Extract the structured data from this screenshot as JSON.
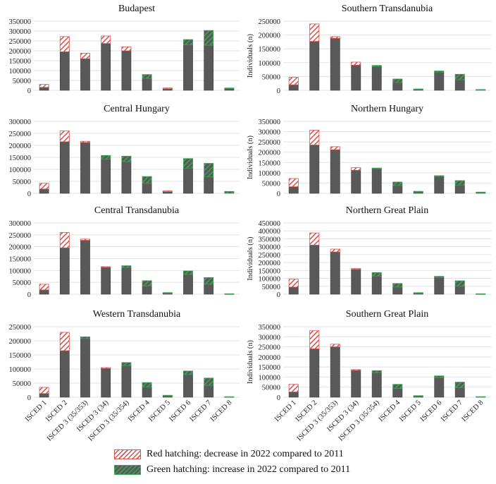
{
  "chart_data": {
    "type": "bar",
    "categories": [
      "ISCED 1",
      "ISCED 2",
      "ISCED 3 (35/353)",
      "ISCED 3 (34)",
      "ISCED 3 (35/354)",
      "ISCED 4",
      "ISCED 5",
      "ISCED 6",
      "ISCED 7",
      "ISCED 8"
    ],
    "ylabel": "Individuals (n)",
    "grid": true,
    "colors": {
      "base": "#595959",
      "decrease": "#d9534f",
      "increase": "#3aa655"
    },
    "legend": {
      "placement": "bottom",
      "red": "Red hatching: decrease in 2022 compared to 2011",
      "green": "Green hatching: increase in 2022 compared to 2011"
    },
    "panels": [
      {
        "title": "Budapest",
        "ylim": [
          0,
          350000
        ],
        "values_2011": [
          30000,
          272000,
          188000,
          275000,
          220000,
          60000,
          12000,
          230000,
          228000,
          8000
        ],
        "values_2022": [
          15000,
          195000,
          160000,
          237000,
          200000,
          80000,
          8000,
          257000,
          303000,
          12000
        ]
      },
      {
        "title": "Southern Transdanubia",
        "ylim": [
          0,
          250000
        ],
        "values_2011": [
          47000,
          240000,
          194000,
          102000,
          86000,
          28000,
          4000,
          66000,
          38000,
          1000
        ],
        "values_2022": [
          20000,
          177000,
          188000,
          91000,
          90000,
          41000,
          5000,
          70000,
          58000,
          3000
        ]
      },
      {
        "title": "Central Hungary",
        "ylim": [
          0,
          300000
        ],
        "values_2011": [
          42000,
          260000,
          217000,
          142000,
          132000,
          42000,
          10000,
          105000,
          68000,
          0
        ],
        "values_2022": [
          18000,
          215000,
          212000,
          158000,
          155000,
          70000,
          8000,
          145000,
          125000,
          8000
        ]
      },
      {
        "title": "Northern Hungary",
        "ylim": [
          0,
          350000
        ],
        "values_2011": [
          72000,
          307000,
          227000,
          125000,
          120000,
          38000,
          6000,
          83000,
          40000,
          2000
        ],
        "values_2022": [
          32000,
          235000,
          212000,
          112000,
          123000,
          55000,
          10000,
          86000,
          62000,
          6000
        ]
      },
      {
        "title": "Central Transdanubia",
        "ylim": [
          0,
          300000
        ],
        "values_2011": [
          42000,
          260000,
          232000,
          116000,
          112000,
          35000,
          5000,
          83000,
          42000,
          1000
        ],
        "values_2022": [
          18000,
          195000,
          227000,
          113000,
          120000,
          57000,
          7000,
          98000,
          70000,
          2000
        ]
      },
      {
        "title": "Northern Great Plain",
        "ylim": [
          0,
          450000
        ],
        "values_2011": [
          95000,
          387000,
          285000,
          162000,
          115000,
          45000,
          5000,
          106000,
          50000,
          1000
        ],
        "values_2022": [
          45000,
          310000,
          267000,
          158000,
          137000,
          68000,
          10000,
          113000,
          85000,
          3000
        ]
      },
      {
        "title": "Western Transdanubia",
        "ylim": [
          0,
          250000
        ],
        "values_2011": [
          35000,
          230000,
          208000,
          105000,
          112000,
          36000,
          5000,
          80000,
          42000,
          1000
        ],
        "values_2022": [
          13000,
          165000,
          214000,
          102000,
          123000,
          52000,
          7000,
          93000,
          68000,
          2000
        ]
      },
      {
        "title": "Southern Great Plain",
        "ylim": [
          0,
          350000
        ],
        "values_2011": [
          64000,
          330000,
          263000,
          137000,
          122000,
          43000,
          5000,
          97000,
          48000,
          1000
        ],
        "values_2022": [
          26000,
          240000,
          250000,
          133000,
          132000,
          64000,
          8000,
          106000,
          75000,
          3000
        ]
      }
    ]
  }
}
